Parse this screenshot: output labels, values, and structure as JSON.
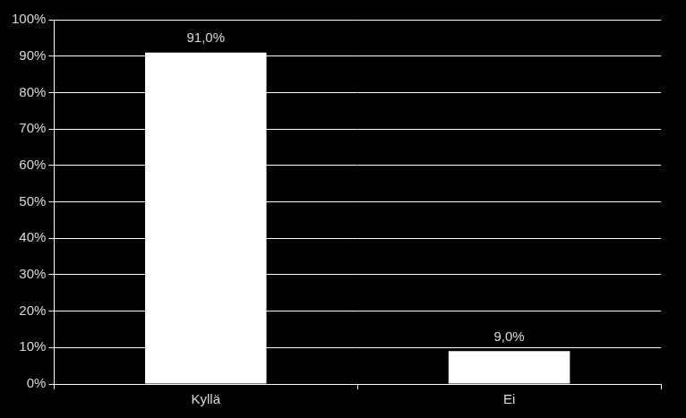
{
  "chart_data": {
    "type": "bar",
    "categories": [
      "Kyllä",
      "Ei"
    ],
    "values": [
      91.0,
      9.0
    ],
    "value_labels": [
      "91,0%",
      "9,0%"
    ],
    "data_labels": true,
    "color": "#ffffff",
    "ylim": [
      0,
      100
    ],
    "yticks": [
      {
        "value": 0,
        "label": "0%"
      },
      {
        "value": 10,
        "label": "10%"
      },
      {
        "value": 20,
        "label": "20%"
      },
      {
        "value": 30,
        "label": "30%"
      },
      {
        "value": 40,
        "label": "40%"
      },
      {
        "value": 50,
        "label": "50%"
      },
      {
        "value": 60,
        "label": "60%"
      },
      {
        "value": 70,
        "label": "70%"
      },
      {
        "value": 80,
        "label": "80%"
      },
      {
        "value": 90,
        "label": "90%"
      },
      {
        "value": 100,
        "label": "100%"
      }
    ],
    "grid": true
  }
}
